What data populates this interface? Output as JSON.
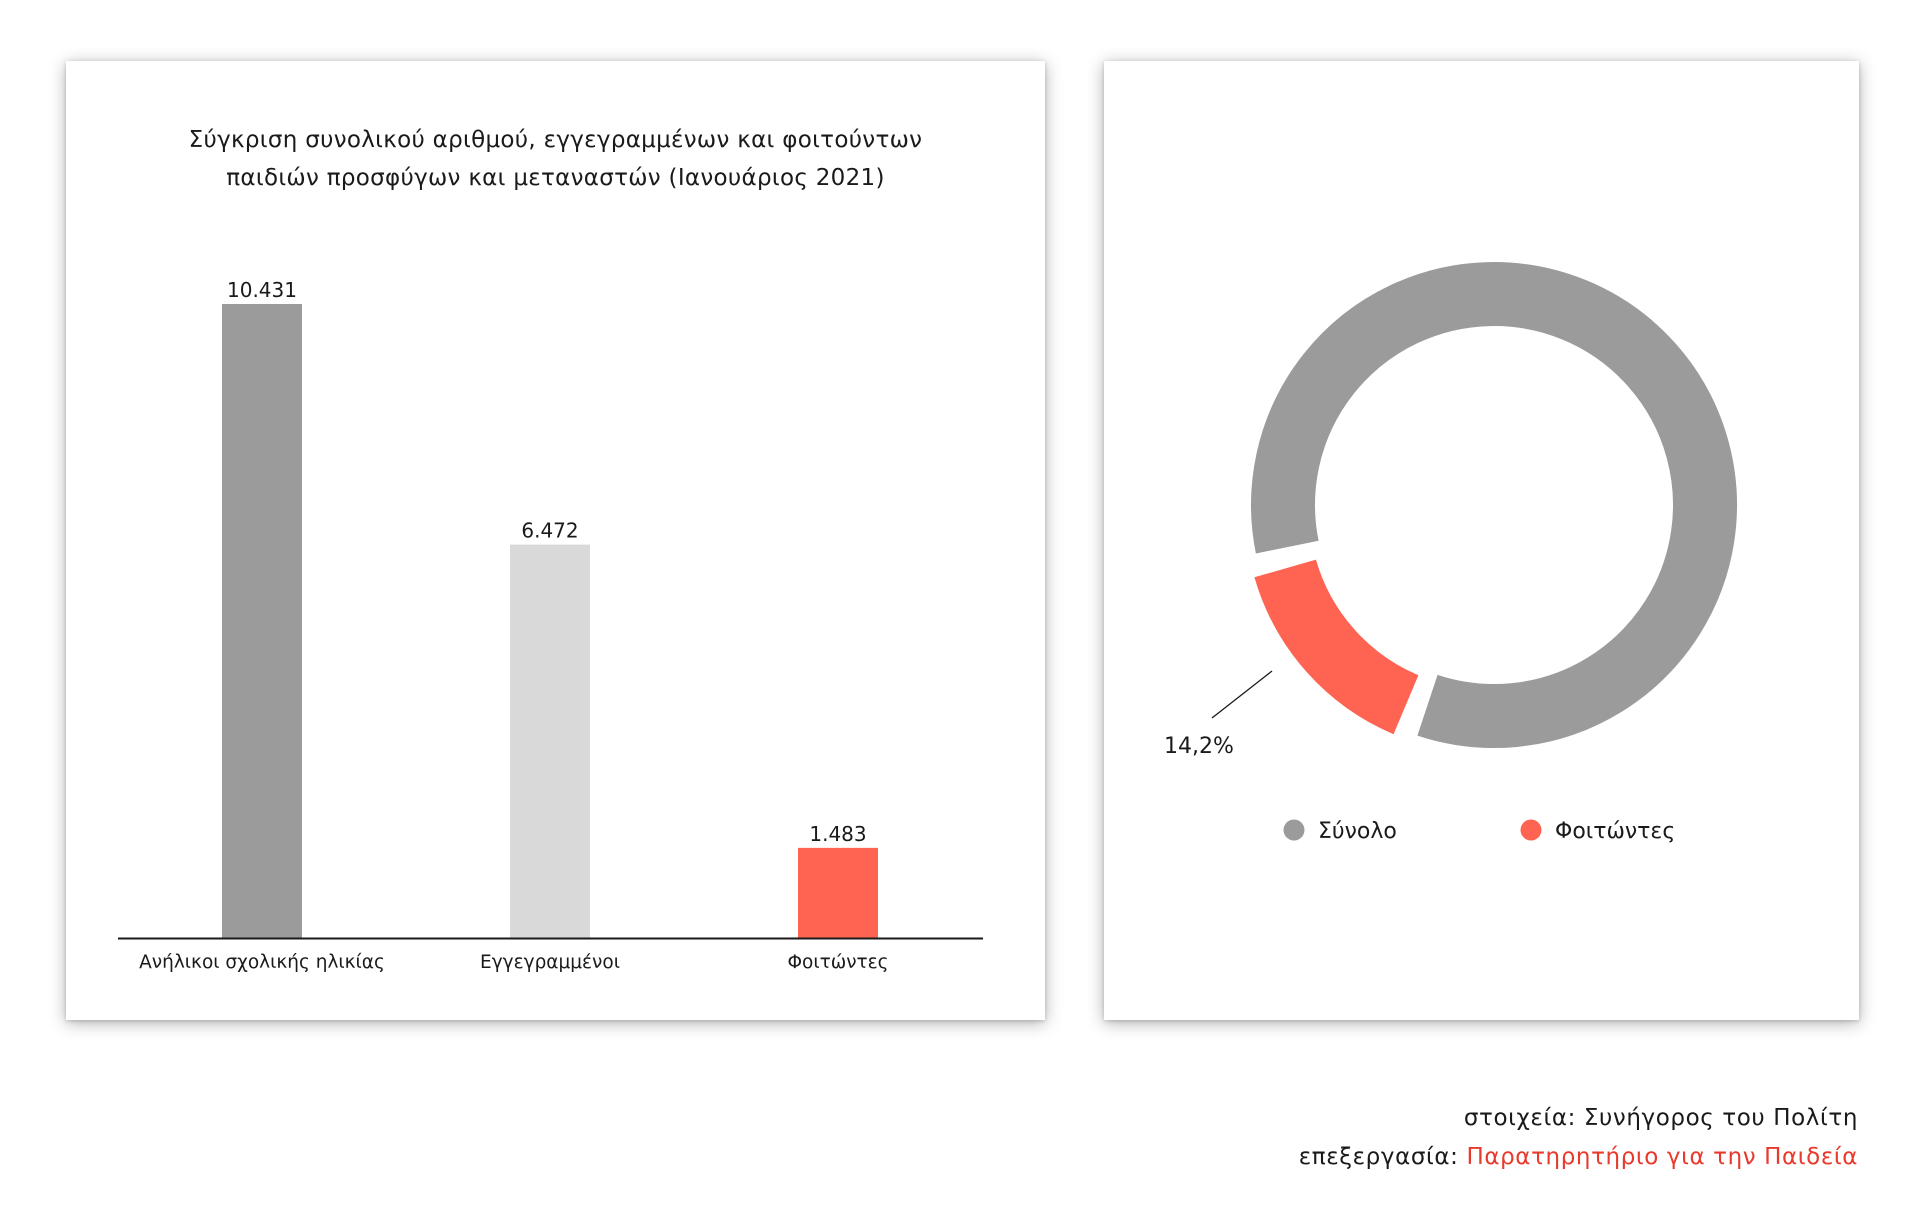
{
  "chart_data": [
    {
      "type": "bar",
      "title_lines": [
        "Σύγκριση συνολικού αριθμού, εγγεγραμμένων και φοιτούντων",
        "παιδιών προσφύγων και μεταναστών (Ιανουάριος 2021)"
      ],
      "categories": [
        "Ανήλικοι σχολικής ηλικίας",
        "Εγγεγραμμένοι",
        "Φοιτώντες"
      ],
      "values": [
        10431,
        6472,
        1483
      ],
      "value_labels": [
        "10.431",
        "6.472",
        "1.483"
      ],
      "colors": [
        "#9b9b9b",
        "#d9d9d9",
        "#ff6452"
      ],
      "ylim": [
        0,
        10431
      ],
      "grid": false
    },
    {
      "type": "pie",
      "variant": "donut",
      "slices": [
        {
          "name": "Σύνολο",
          "value": 85.8,
          "color": "#9b9b9b"
        },
        {
          "name": "Φοιτώντες",
          "value": 14.2,
          "color": "#ff6452"
        }
      ],
      "annotation": "14,2%",
      "legend": [
        {
          "label": "Σύνολο",
          "color": "#9b9b9b"
        },
        {
          "label": "Φοιτώντες",
          "color": "#ff6452"
        }
      ],
      "legend_position": "bottom"
    }
  ],
  "credits": {
    "data_line": "στοιχεία: Συνήγορος του Πολίτη",
    "processing_prefix": "επεξεργασία:",
    "processing_source": "Παρατηρητήριο για την Παιδεία"
  }
}
